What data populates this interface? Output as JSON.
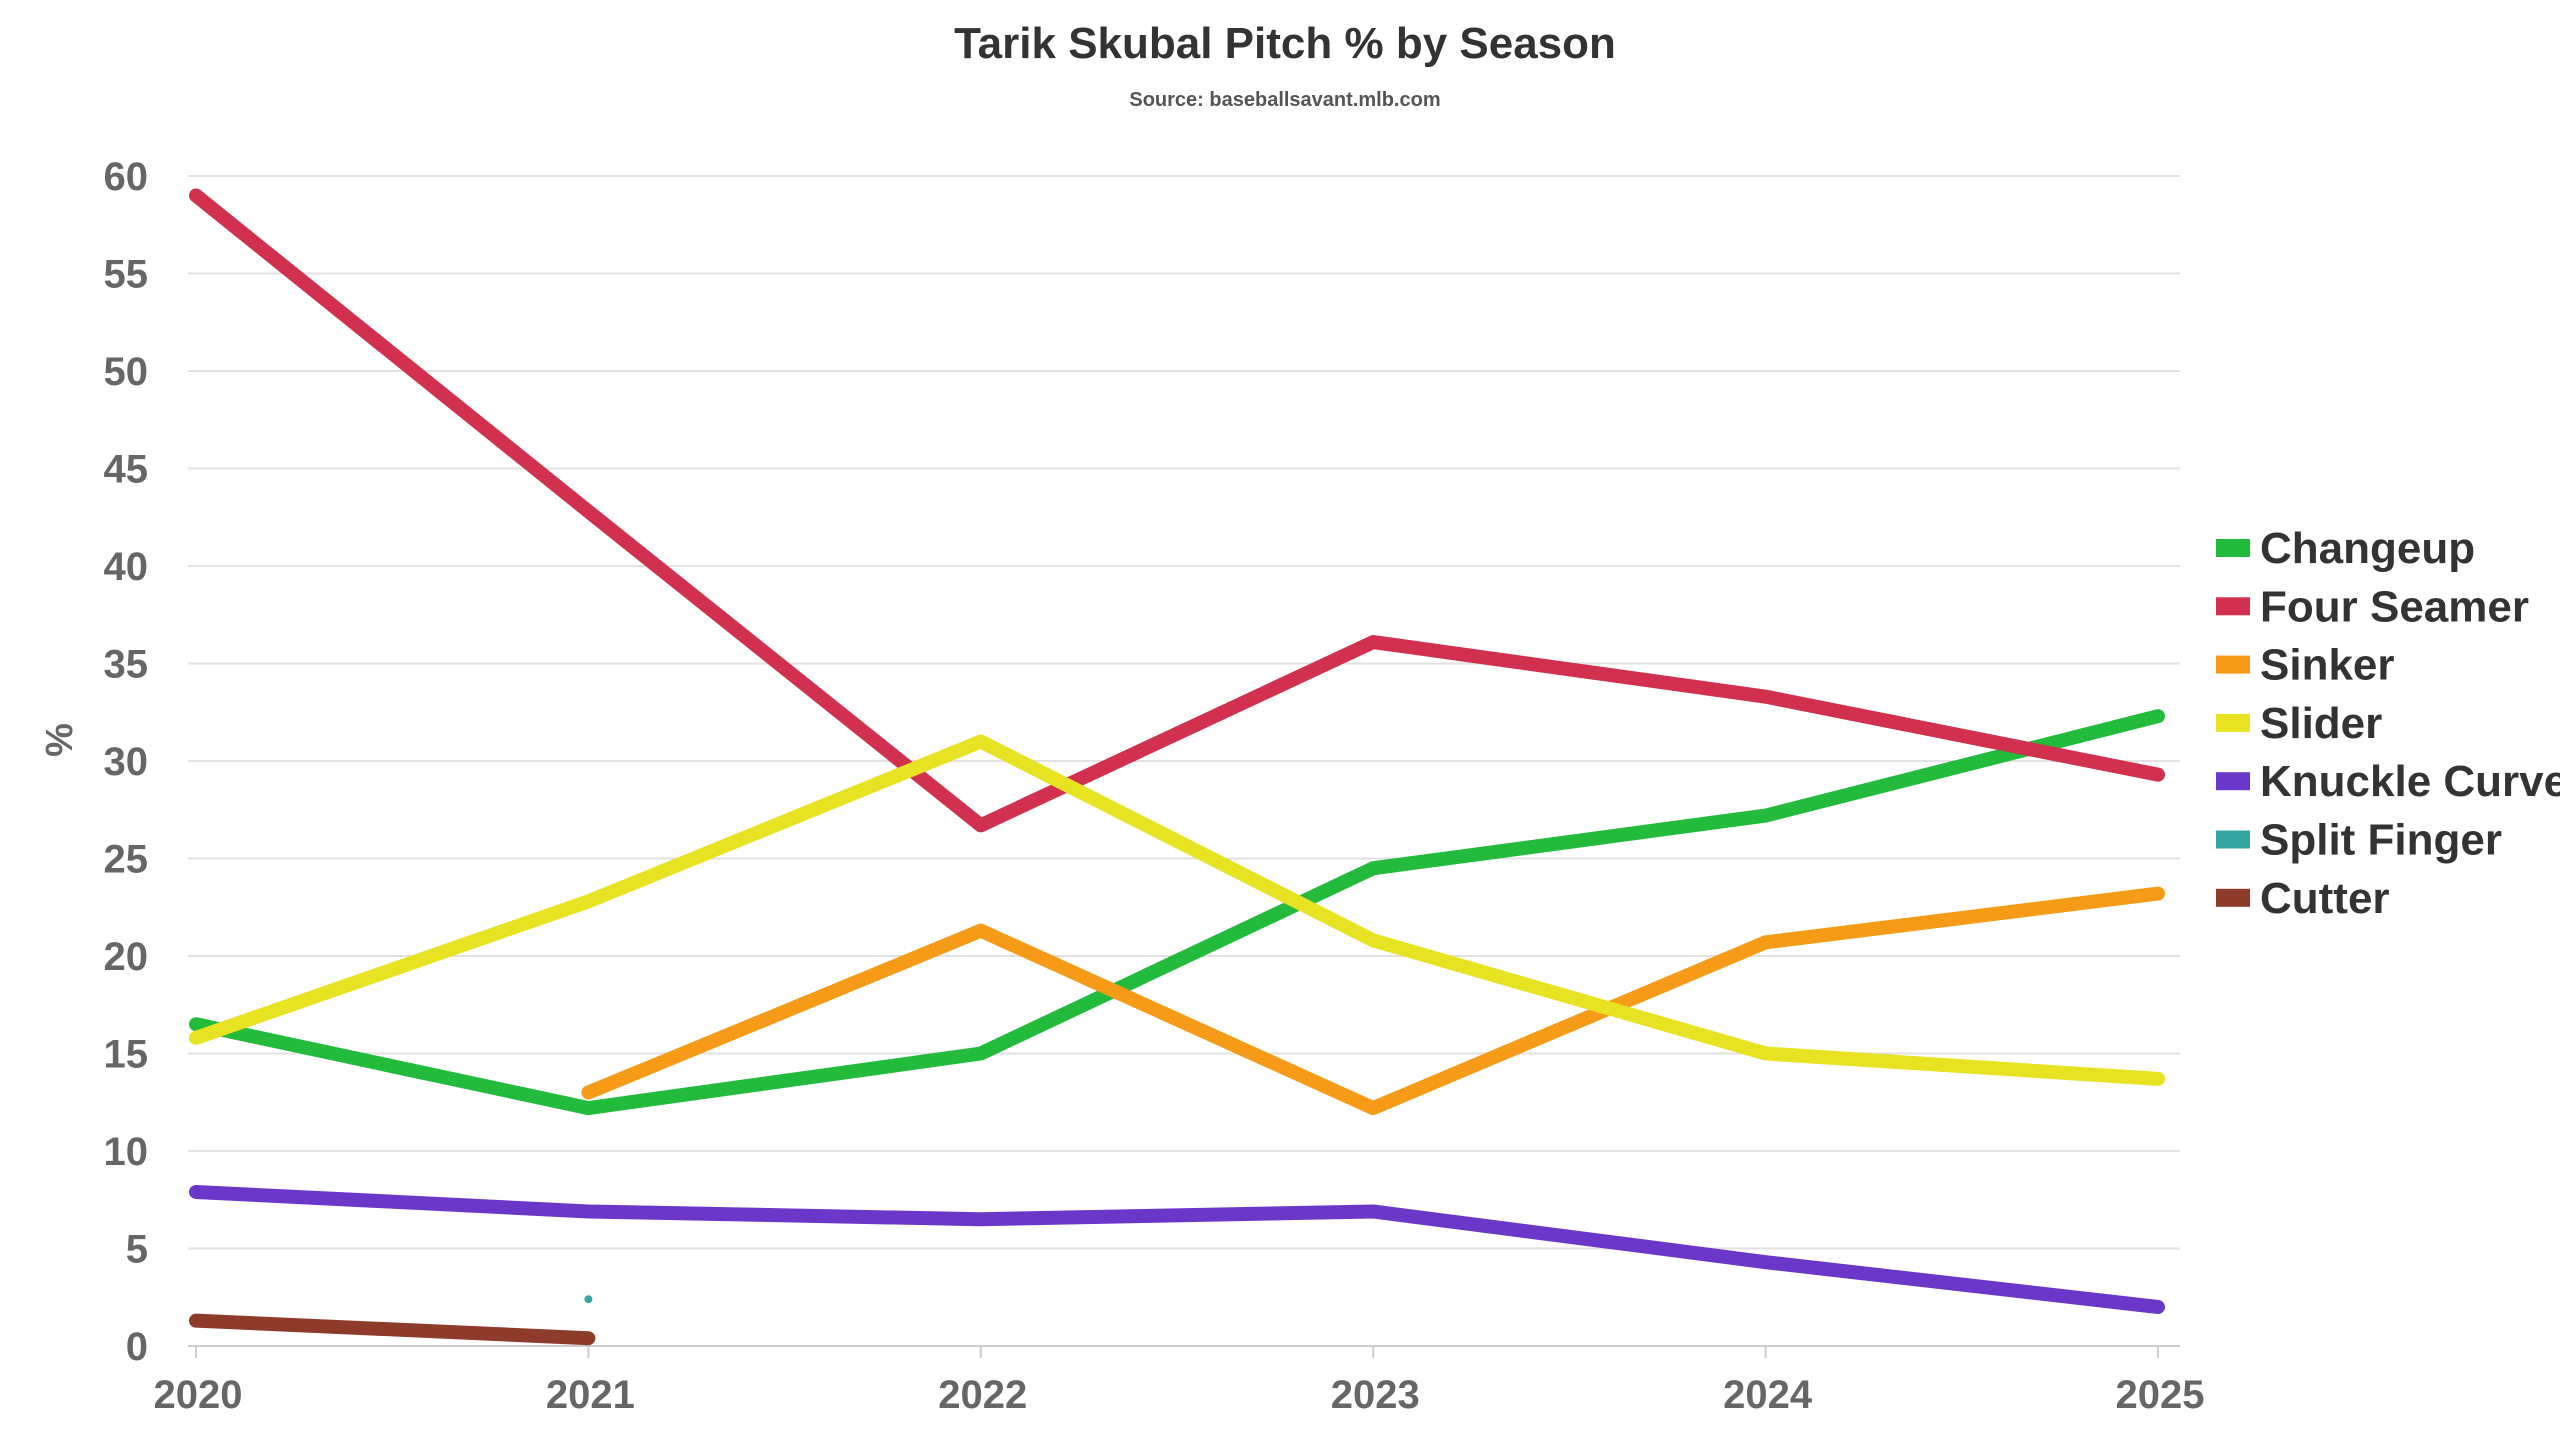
{
  "chart_data": {
    "type": "line",
    "title": "Tarik Skubal Pitch % by Season",
    "subtitle": "Source: baseballsavant.mlb.com",
    "xlabel": "",
    "ylabel": "%",
    "x": [
      "2020",
      "2021",
      "2022",
      "2023",
      "2024",
      "2025"
    ],
    "ylim": [
      0,
      60
    ],
    "yticks": [
      0,
      5,
      10,
      15,
      20,
      25,
      30,
      35,
      40,
      45,
      50,
      55,
      60
    ],
    "grid": true,
    "legend_position": "right",
    "series": [
      {
        "name": "Changeup",
        "color": "#22bb3c",
        "values": [
          16.5,
          12.2,
          15.0,
          24.5,
          27.2,
          32.3
        ]
      },
      {
        "name": "Four Seamer",
        "color": "#d1304f",
        "values": [
          59.0,
          42.8,
          26.7,
          36.1,
          33.3,
          29.3
        ]
      },
      {
        "name": "Sinker",
        "color": "#f59b17",
        "values": [
          null,
          13.0,
          21.3,
          12.2,
          20.7,
          23.2
        ]
      },
      {
        "name": "Slider",
        "color": "#e8e322",
        "values": [
          15.8,
          22.8,
          31.0,
          20.8,
          15.0,
          13.7
        ]
      },
      {
        "name": "Knuckle Curve",
        "color": "#6a37c9",
        "values": [
          7.9,
          6.9,
          6.5,
          6.9,
          4.3,
          2.0
        ]
      },
      {
        "name": "Split Finger",
        "color": "#36a6a3",
        "values": [
          null,
          2.4,
          null,
          null,
          null,
          null
        ]
      },
      {
        "name": "Cutter",
        "color": "#8e3b2c",
        "values": [
          1.3,
          0.4,
          null,
          null,
          null,
          null
        ]
      }
    ]
  }
}
